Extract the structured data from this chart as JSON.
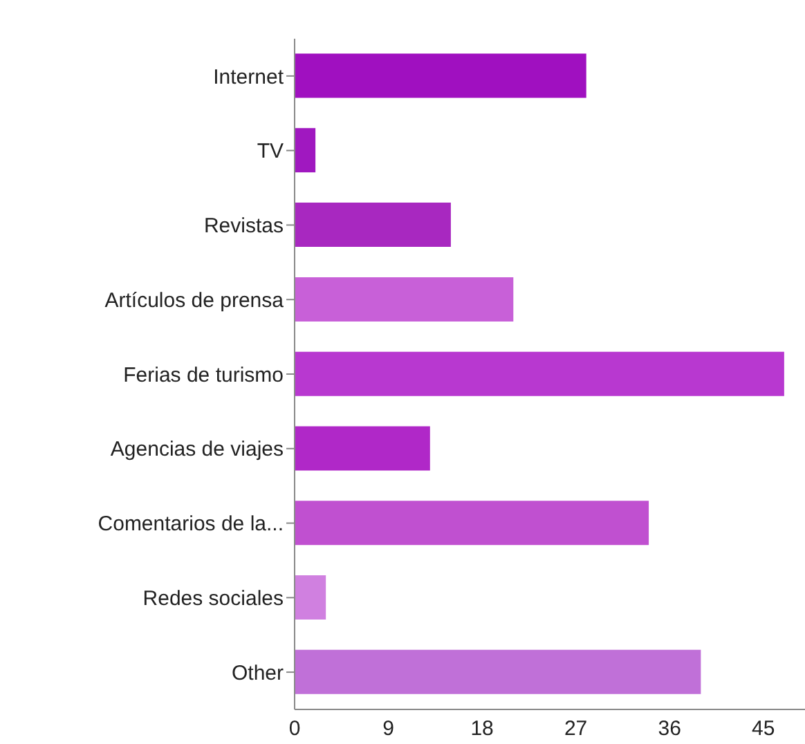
{
  "chart_data": {
    "type": "bar",
    "orientation": "horizontal",
    "categories": [
      "Internet",
      "TV",
      "Revistas",
      "Artículos de prensa",
      "Ferias de turismo",
      "Agencias de viajes",
      "Comentarios de la...",
      "Redes sociales",
      "Other"
    ],
    "values": [
      28,
      2,
      15,
      21,
      47,
      13,
      34,
      3,
      39
    ],
    "colors": [
      "#a010c0",
      "#a018c0",
      "#a828c0",
      "#c860d8",
      "#b838d0",
      "#b028c8",
      "#c050d0",
      "#d080e0",
      "#c070d8"
    ],
    "xlim": [
      0,
      49
    ],
    "xticks": [
      0,
      9,
      18,
      27,
      36,
      45
    ],
    "grid": false
  }
}
